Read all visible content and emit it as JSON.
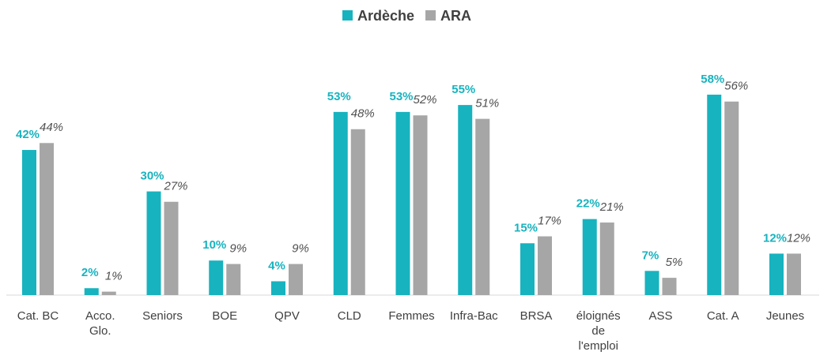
{
  "chart_data": {
    "type": "bar",
    "categories": [
      "Cat. BC",
      "Acco.\nGlo.",
      "Seniors",
      "BOE",
      "QPV",
      "CLD",
      "Femmes",
      "Infra-Bac",
      "BRSA",
      "éloignés\nde\nl'emploi",
      "ASS",
      "Cat. A",
      "Jeunes"
    ],
    "series": [
      {
        "name": "Ardèche",
        "color": "#17b3bf",
        "values": [
          42,
          2,
          30,
          10,
          4,
          53,
          53,
          55,
          15,
          22,
          7,
          58,
          12
        ],
        "value_labels": [
          "42%",
          "2%",
          "30%",
          "10%",
          "4%",
          "53%",
          "53%",
          "55%",
          "15%",
          "22%",
          "7%",
          "58%",
          "12%"
        ]
      },
      {
        "name": "ARA",
        "color": "#a6a6a6",
        "values": [
          44,
          1,
          27,
          9,
          9,
          48,
          52,
          51,
          17,
          21,
          5,
          56,
          12
        ],
        "value_labels": [
          "44%",
          "1%",
          "27%",
          "9%",
          "9%",
          "48%",
          "52%",
          "51%",
          "17%",
          "21%",
          "5%",
          "56%",
          "12%"
        ]
      }
    ],
    "legend": "top"
  }
}
